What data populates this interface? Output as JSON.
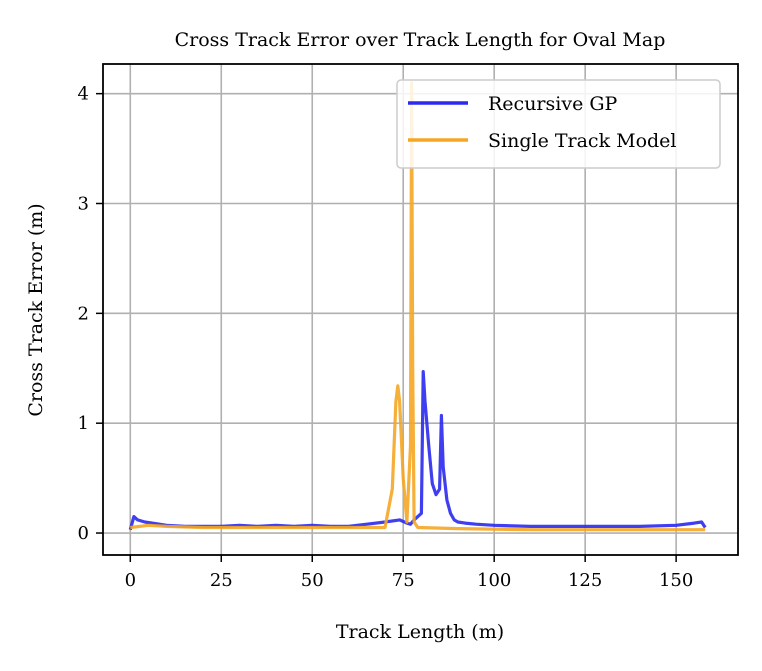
{
  "chart_data": {
    "type": "line",
    "title": "Cross Track Error over Track Length for Oval Map",
    "xlabel": "Track Length (m)",
    "ylabel": "Cross Track Error (m)",
    "xlim": [
      -7.5,
      167
    ],
    "ylim": [
      -0.2,
      4.27
    ],
    "xticks": [
      0,
      25,
      50,
      75,
      100,
      125,
      150
    ],
    "yticks": [
      0,
      1,
      2,
      3,
      4
    ],
    "grid": true,
    "legend_position": "top-right",
    "series": [
      {
        "name": "Recursive GP",
        "color": "#2a2af0",
        "x": [
          0,
          1,
          2,
          4,
          6,
          8,
          10,
          15,
          20,
          25,
          30,
          35,
          40,
          45,
          50,
          55,
          60,
          65,
          70,
          74,
          76,
          77,
          78,
          79,
          80,
          80.5,
          81,
          82,
          83,
          84,
          85,
          85.5,
          86,
          87,
          88,
          89,
          90,
          92,
          95,
          100,
          110,
          120,
          130,
          140,
          150,
          155,
          157,
          158
        ],
        "y": [
          0.03,
          0.15,
          0.12,
          0.1,
          0.09,
          0.08,
          0.07,
          0.06,
          0.06,
          0.06,
          0.07,
          0.06,
          0.07,
          0.06,
          0.07,
          0.06,
          0.06,
          0.08,
          0.1,
          0.12,
          0.09,
          0.08,
          0.12,
          0.15,
          0.18,
          1.47,
          1.2,
          0.8,
          0.45,
          0.35,
          0.4,
          1.07,
          0.6,
          0.3,
          0.18,
          0.12,
          0.1,
          0.09,
          0.08,
          0.07,
          0.06,
          0.06,
          0.06,
          0.06,
          0.07,
          0.09,
          0.1,
          0.05
        ]
      },
      {
        "name": "Single Track Model",
        "color": "#f5a623",
        "x": [
          0,
          5,
          10,
          20,
          30,
          40,
          50,
          60,
          70,
          72,
          73,
          73.5,
          74,
          75,
          76,
          77,
          77.3,
          77.6,
          78,
          79,
          90,
          110,
          130,
          150,
          158
        ],
        "y": [
          0.05,
          0.07,
          0.06,
          0.05,
          0.05,
          0.05,
          0.05,
          0.05,
          0.05,
          0.4,
          1.2,
          1.34,
          1.2,
          0.5,
          0.1,
          0.8,
          4.1,
          1.5,
          0.1,
          0.05,
          0.04,
          0.03,
          0.03,
          0.03,
          0.03
        ]
      }
    ]
  }
}
